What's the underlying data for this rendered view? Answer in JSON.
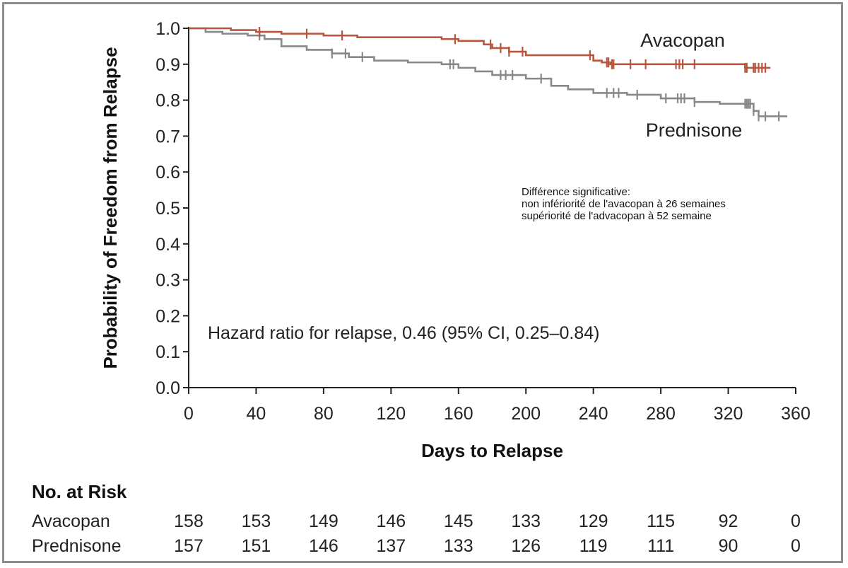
{
  "chart_data": {
    "type": "line",
    "title": "",
    "xlabel": "Days to Relapse",
    "ylabel": "Probability of Freedom from Relapse",
    "xlim": [
      0,
      360
    ],
    "ylim": [
      0.0,
      1.0
    ],
    "x_ticks": [
      0,
      40,
      80,
      120,
      160,
      200,
      240,
      280,
      320,
      360
    ],
    "y_ticks": [
      "0.0",
      "0.1",
      "0.2",
      "0.3",
      "0.4",
      "0.5",
      "0.6",
      "0.7",
      "0.8",
      "0.9",
      "1.0"
    ],
    "grid": false,
    "series": [
      {
        "name": "Avacopan",
        "color": "#b9553c",
        "x": [
          0,
          10,
          25,
          40,
          55,
          80,
          100,
          130,
          150,
          160,
          175,
          180,
          190,
          200,
          240,
          245,
          250,
          330,
          345
        ],
        "y": [
          1.0,
          1.0,
          0.995,
          0.99,
          0.985,
          0.98,
          0.975,
          0.975,
          0.97,
          0.965,
          0.955,
          0.945,
          0.935,
          0.925,
          0.91,
          0.905,
          0.9,
          0.89,
          0.89
        ],
        "censored_x": [
          42,
          70,
          91,
          158,
          179,
          185,
          190,
          198,
          238,
          248,
          249,
          251,
          252,
          262,
          271,
          289,
          291,
          293,
          300,
          330,
          331,
          335,
          336,
          338,
          340,
          342
        ]
      },
      {
        "name": "Prednisone",
        "color": "#888888",
        "x": [
          0,
          10,
          20,
          35,
          45,
          55,
          70,
          85,
          95,
          110,
          130,
          150,
          160,
          170,
          180,
          200,
          215,
          225,
          240,
          260,
          280,
          300,
          315,
          335,
          338,
          355
        ],
        "y": [
          1.0,
          0.99,
          0.985,
          0.98,
          0.97,
          0.95,
          0.94,
          0.93,
          0.92,
          0.91,
          0.905,
          0.9,
          0.89,
          0.88,
          0.87,
          0.86,
          0.84,
          0.83,
          0.82,
          0.815,
          0.805,
          0.795,
          0.79,
          0.77,
          0.755,
          0.755
        ],
        "censored_x": [
          42,
          85,
          93,
          103,
          155,
          157,
          185,
          188,
          192,
          209,
          248,
          252,
          255,
          266,
          283,
          290,
          292,
          294,
          300,
          330,
          331,
          332,
          333,
          335,
          338,
          342,
          350
        ]
      }
    ],
    "annotation": "Hazard ratio for relapse, 0.46 (95% CI, 0.25–0.84)",
    "note_lines": [
      "Différence significative:",
      "non infériorité de l'avacopan à 26 semaines",
      "supériorité de l'advacopan à 52 semaine"
    ],
    "risk_table": {
      "title": "No. at Risk",
      "rows": [
        {
          "label": "Avacopan",
          "values": [
            "158",
            "153",
            "149",
            "146",
            "145",
            "133",
            "129",
            "115",
            "92",
            "0"
          ]
        },
        {
          "label": "Prednisone",
          "values": [
            "157",
            "151",
            "146",
            "137",
            "133",
            "126",
            "119",
            "111",
            "90",
            "0"
          ]
        }
      ]
    }
  }
}
